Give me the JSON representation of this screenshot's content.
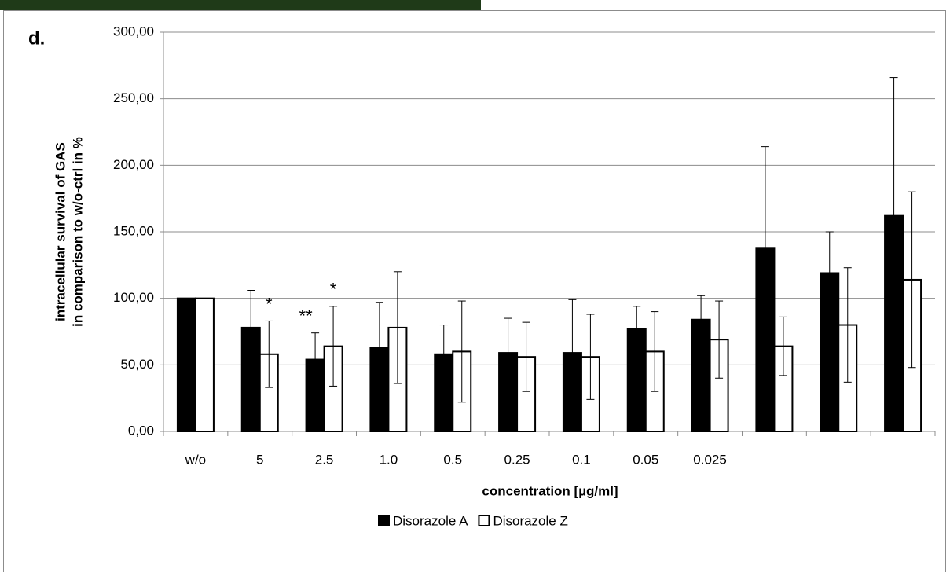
{
  "chart_data": {
    "type": "bar",
    "panel_label": "d.",
    "y_label": [
      "intracellular survival of GAS",
      "in comparison to  w/o-ctrl in %"
    ],
    "x_label": "concentration [µg/ml]",
    "categories": [
      "w/o",
      "5",
      "2.5",
      "1.0",
      "0.5",
      "0.25",
      "0.1",
      "0.05",
      "0.025",
      null,
      null,
      null
    ],
    "series": [
      {
        "name": "Disorazole A",
        "color": "#000000",
        "values": [
          100,
          78,
          54,
          63,
          58,
          59,
          59,
          77,
          84,
          138,
          119,
          162
        ],
        "errors": [
          0,
          28,
          20,
          34,
          22,
          26,
          40,
          17,
          18,
          76,
          31,
          104
        ]
      },
      {
        "name": "Disorazole Z",
        "color": "#ffffff",
        "values": [
          100,
          58,
          64,
          78,
          60,
          56,
          56,
          60,
          69,
          64,
          80,
          114
        ],
        "errors": [
          0,
          25,
          30,
          42,
          38,
          26,
          32,
          30,
          29,
          22,
          43,
          66
        ]
      }
    ],
    "annotations": [
      "*",
      "**",
      "*"
    ],
    "ylim": [
      0,
      300
    ],
    "yticks": [
      {
        "value": 0,
        "label": "0,00"
      },
      {
        "value": 50,
        "label": "50,00"
      },
      {
        "value": 100,
        "label": "100,00"
      },
      {
        "value": 150,
        "label": "150,00"
      },
      {
        "value": 200,
        "label": "200,00"
      },
      {
        "value": 250,
        "label": "250,00"
      },
      {
        "value": 300,
        "label": "300,00"
      }
    ],
    "grid": true,
    "legend": "bottom"
  }
}
